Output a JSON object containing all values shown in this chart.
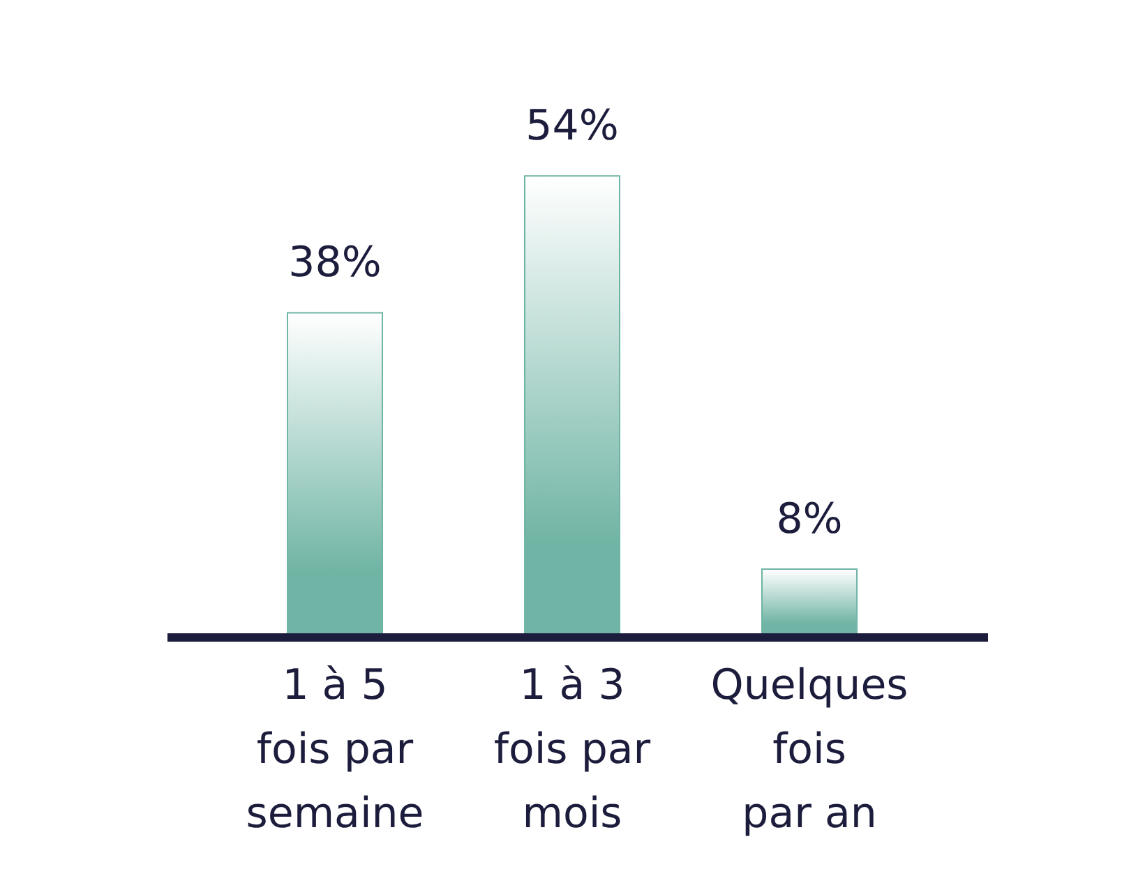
{
  "chart_data": {
    "type": "bar",
    "categories": [
      "1 à 5\nfois par\nsemaine",
      "1 à 3\nfois par\nmois",
      "Quelques\nfois\npar an"
    ],
    "values": [
      38,
      54,
      8
    ],
    "color": "#6fb4a4",
    "value_labels": [
      "38%",
      "54%",
      "8%"
    ],
    "data_labels": true
  }
}
